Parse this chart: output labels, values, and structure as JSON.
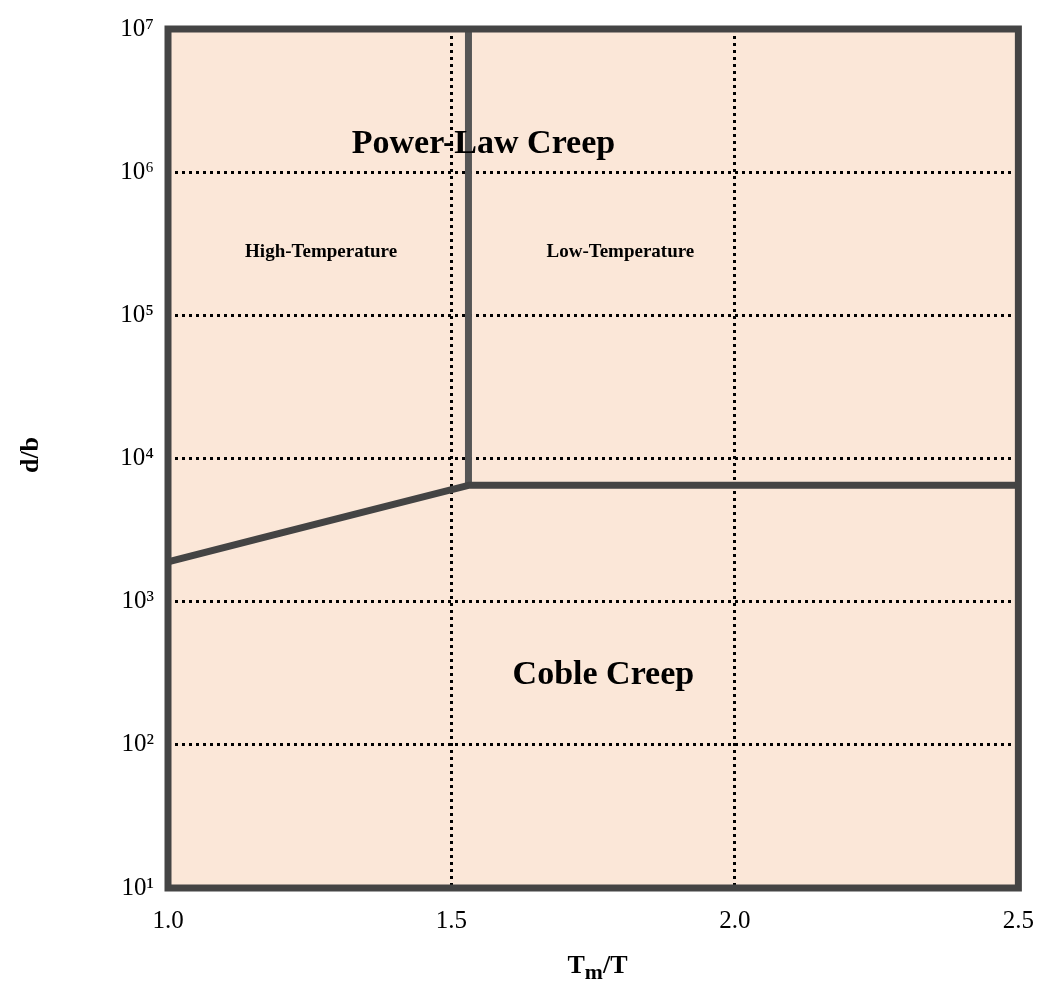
{
  "chart_data": {
    "type": "line",
    "xlabel": "T$_{m}$/T",
    "ylabel": "d/b",
    "log": "y",
    "grid": true,
    "legend": false,
    "marker": "none",
    "line_style": "solid",
    "xlim": [
      1.0,
      2.5
    ],
    "xticks": [
      {
        "value": 1.0,
        "label": "1.0"
      },
      {
        "value": 1.5,
        "label": "1.5"
      },
      {
        "value": 2.0,
        "label": "2.0"
      },
      {
        "value": 2.5,
        "label": "2.5"
      }
    ],
    "ylim": [
      10,
      10000000
    ],
    "yticks": [
      {
        "value": 10,
        "label": "10¹"
      },
      {
        "value": 100,
        "label": "10²"
      },
      {
        "value": 1000,
        "label": "10³"
      },
      {
        "value": 10000,
        "label": "10⁴"
      },
      {
        "value": 100000,
        "label": "10⁵"
      },
      {
        "value": 1000000,
        "label": "10⁶"
      },
      {
        "value": 10000000,
        "label": "10⁷"
      }
    ],
    "series": [
      {
        "color": "#444444",
        "x": [
          1.0,
          1.53,
          2.5
        ],
        "values": [
          1900,
          6500,
          6500
        ]
      },
      {
        "color": "#555555",
        "x": [
          1.53,
          1.53
        ],
        "values": [
          6500,
          10000000
        ]
      }
    ],
    "annotations": [
      "Power-Law Creep",
      "Coble Creep",
      "High-Temperature",
      "Low-Temperature"
    ]
  }
}
